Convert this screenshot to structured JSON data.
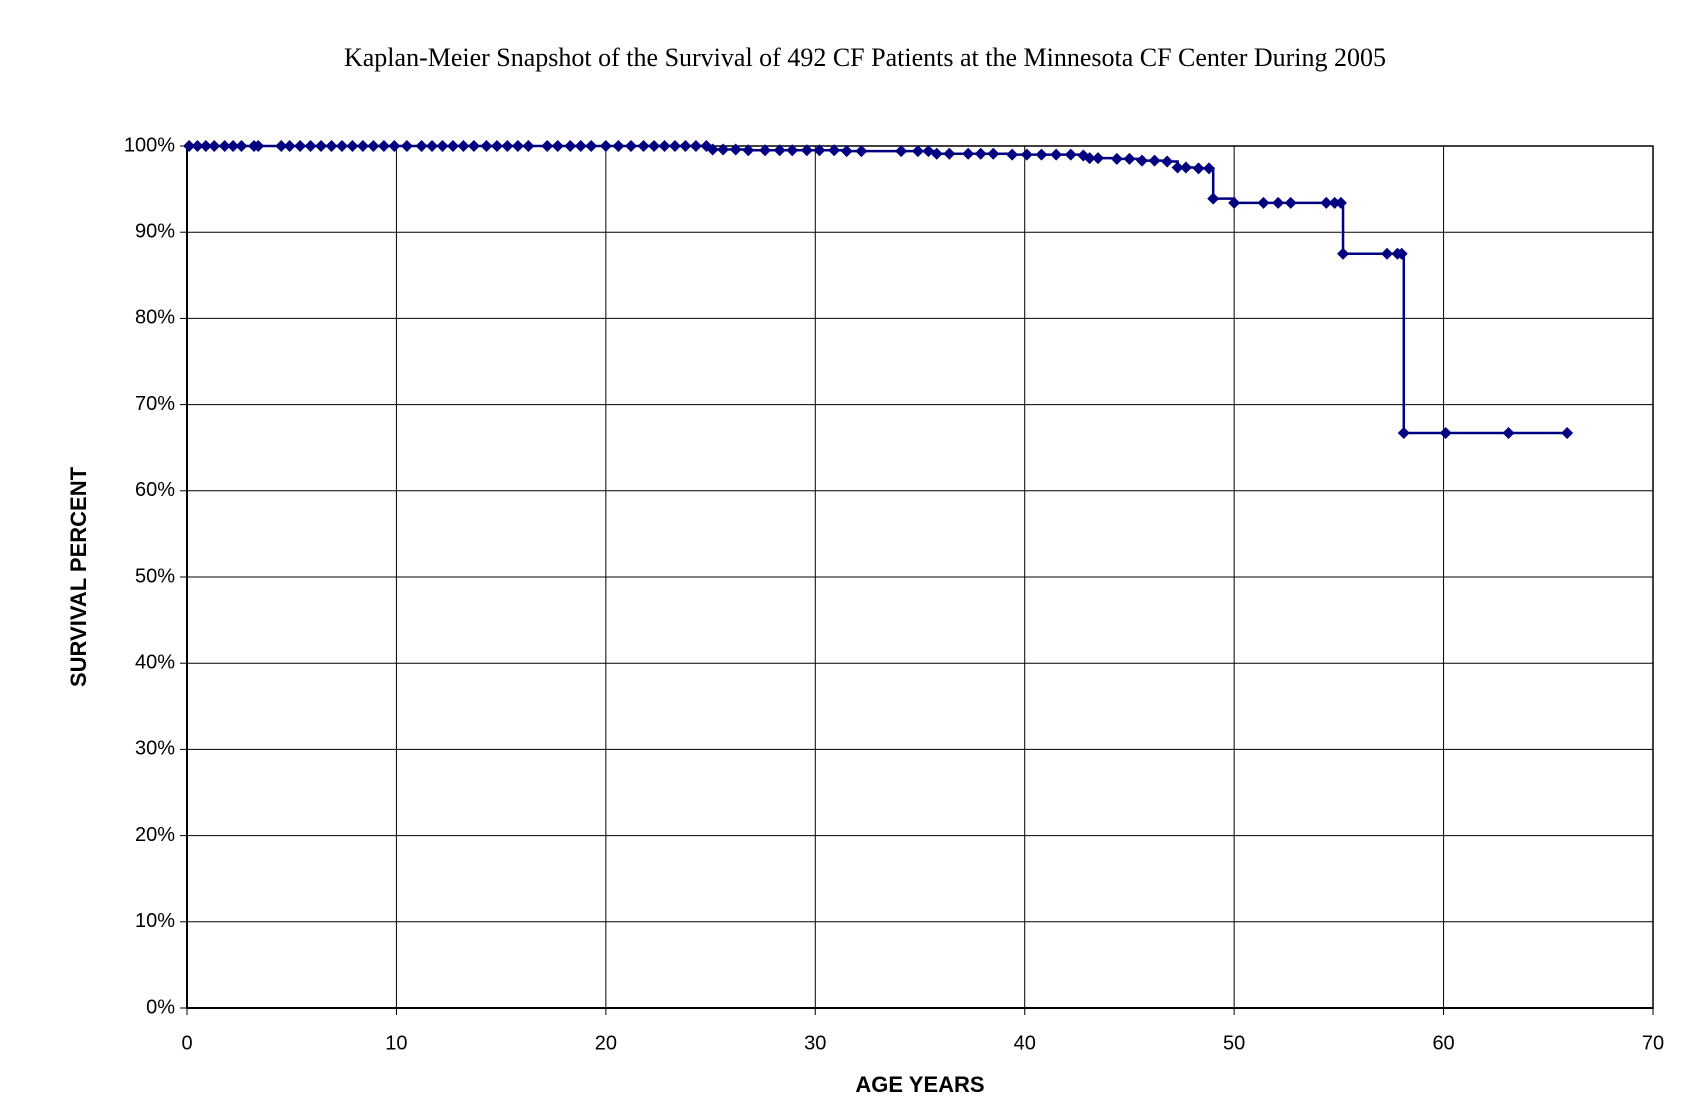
{
  "chart_data": {
    "type": "line",
    "title": "Kaplan-Meier Snapshot of the Survival of 492 CF Patients at the Minnesota CF Center During 2005",
    "x_label": "AGE YEARS",
    "y_label": "SURVIVAL PERCENT",
    "drawstyle": "steps-post",
    "marker": "diamond",
    "grid": true,
    "xlim": [
      0,
      70
    ],
    "xticks": [
      0,
      10,
      20,
      30,
      40,
      50,
      60,
      70
    ],
    "ylim": [
      0,
      100
    ],
    "yticks": [
      {
        "value": 0,
        "label": "0%"
      },
      {
        "value": 10,
        "label": "10%"
      },
      {
        "value": 20,
        "label": "20%"
      },
      {
        "value": 30,
        "label": "30%"
      },
      {
        "value": 40,
        "label": "40%"
      },
      {
        "value": 50,
        "label": "50%"
      },
      {
        "value": 60,
        "label": "60%"
      },
      {
        "value": 70,
        "label": "70%"
      },
      {
        "value": 80,
        "label": "80%"
      },
      {
        "value": 90,
        "label": "90%"
      },
      {
        "value": 100,
        "label": "100%"
      }
    ],
    "series": [
      {
        "color": "#000080",
        "x": [
          0.1,
          0.5,
          0.9,
          1.3,
          1.8,
          2.2,
          2.6,
          3.2,
          3.4,
          4.5,
          4.9,
          5.4,
          5.9,
          6.4,
          6.9,
          7.4,
          7.9,
          8.4,
          8.9,
          9.4,
          9.9,
          10.5,
          11.2,
          11.7,
          12.2,
          12.7,
          13.2,
          13.7,
          14.3,
          14.8,
          15.3,
          15.8,
          16.3,
          17.2,
          17.7,
          18.3,
          18.8,
          19.3,
          20.0,
          20.6,
          21.2,
          21.8,
          22.3,
          22.8,
          23.3,
          23.8,
          24.3,
          24.8,
          25.1,
          25.6,
          26.2,
          26.8,
          27.6,
          28.3,
          28.9,
          29.6,
          30.2,
          30.9,
          31.5,
          32.2,
          34.1,
          34.9,
          35.4,
          35.8,
          36.4,
          37.3,
          37.9,
          38.5,
          39.4,
          40.1,
          40.8,
          41.5,
          42.2,
          42.8,
          43.1,
          43.5,
          44.4,
          45.0,
          45.6,
          46.2,
          46.8,
          47.3,
          47.7,
          48.3,
          48.8,
          49.0,
          50.0,
          51.4,
          52.1,
          52.7,
          54.4,
          54.8,
          55.1,
          55.2,
          57.3,
          57.8,
          58.0,
          58.1,
          60.1,
          63.1,
          65.9
        ],
        "values": [
          100,
          100,
          100,
          100,
          100,
          100,
          100,
          100,
          100,
          100,
          100,
          100,
          100,
          100,
          100,
          100,
          100,
          100,
          100,
          100,
          100,
          100,
          100,
          100,
          100,
          100,
          100,
          100,
          100,
          100,
          100,
          100,
          100,
          100,
          100,
          100,
          100,
          100,
          100,
          100,
          100,
          100,
          100,
          100,
          100,
          100,
          100,
          100,
          99.6,
          99.6,
          99.6,
          99.5,
          99.5,
          99.5,
          99.5,
          99.5,
          99.5,
          99.5,
          99.4,
          99.4,
          99.4,
          99.4,
          99.4,
          99.1,
          99.1,
          99.1,
          99.1,
          99.1,
          99.0,
          99.0,
          99.0,
          99.0,
          99.0,
          98.9,
          98.6,
          98.6,
          98.5,
          98.5,
          98.3,
          98.3,
          98.2,
          97.5,
          97.5,
          97.4,
          97.4,
          93.9,
          93.4,
          93.4,
          93.4,
          93.4,
          93.4,
          93.4,
          93.4,
          87.5,
          87.5,
          87.5,
          87.5,
          66.7,
          66.7,
          66.7,
          66.7
        ]
      }
    ]
  }
}
